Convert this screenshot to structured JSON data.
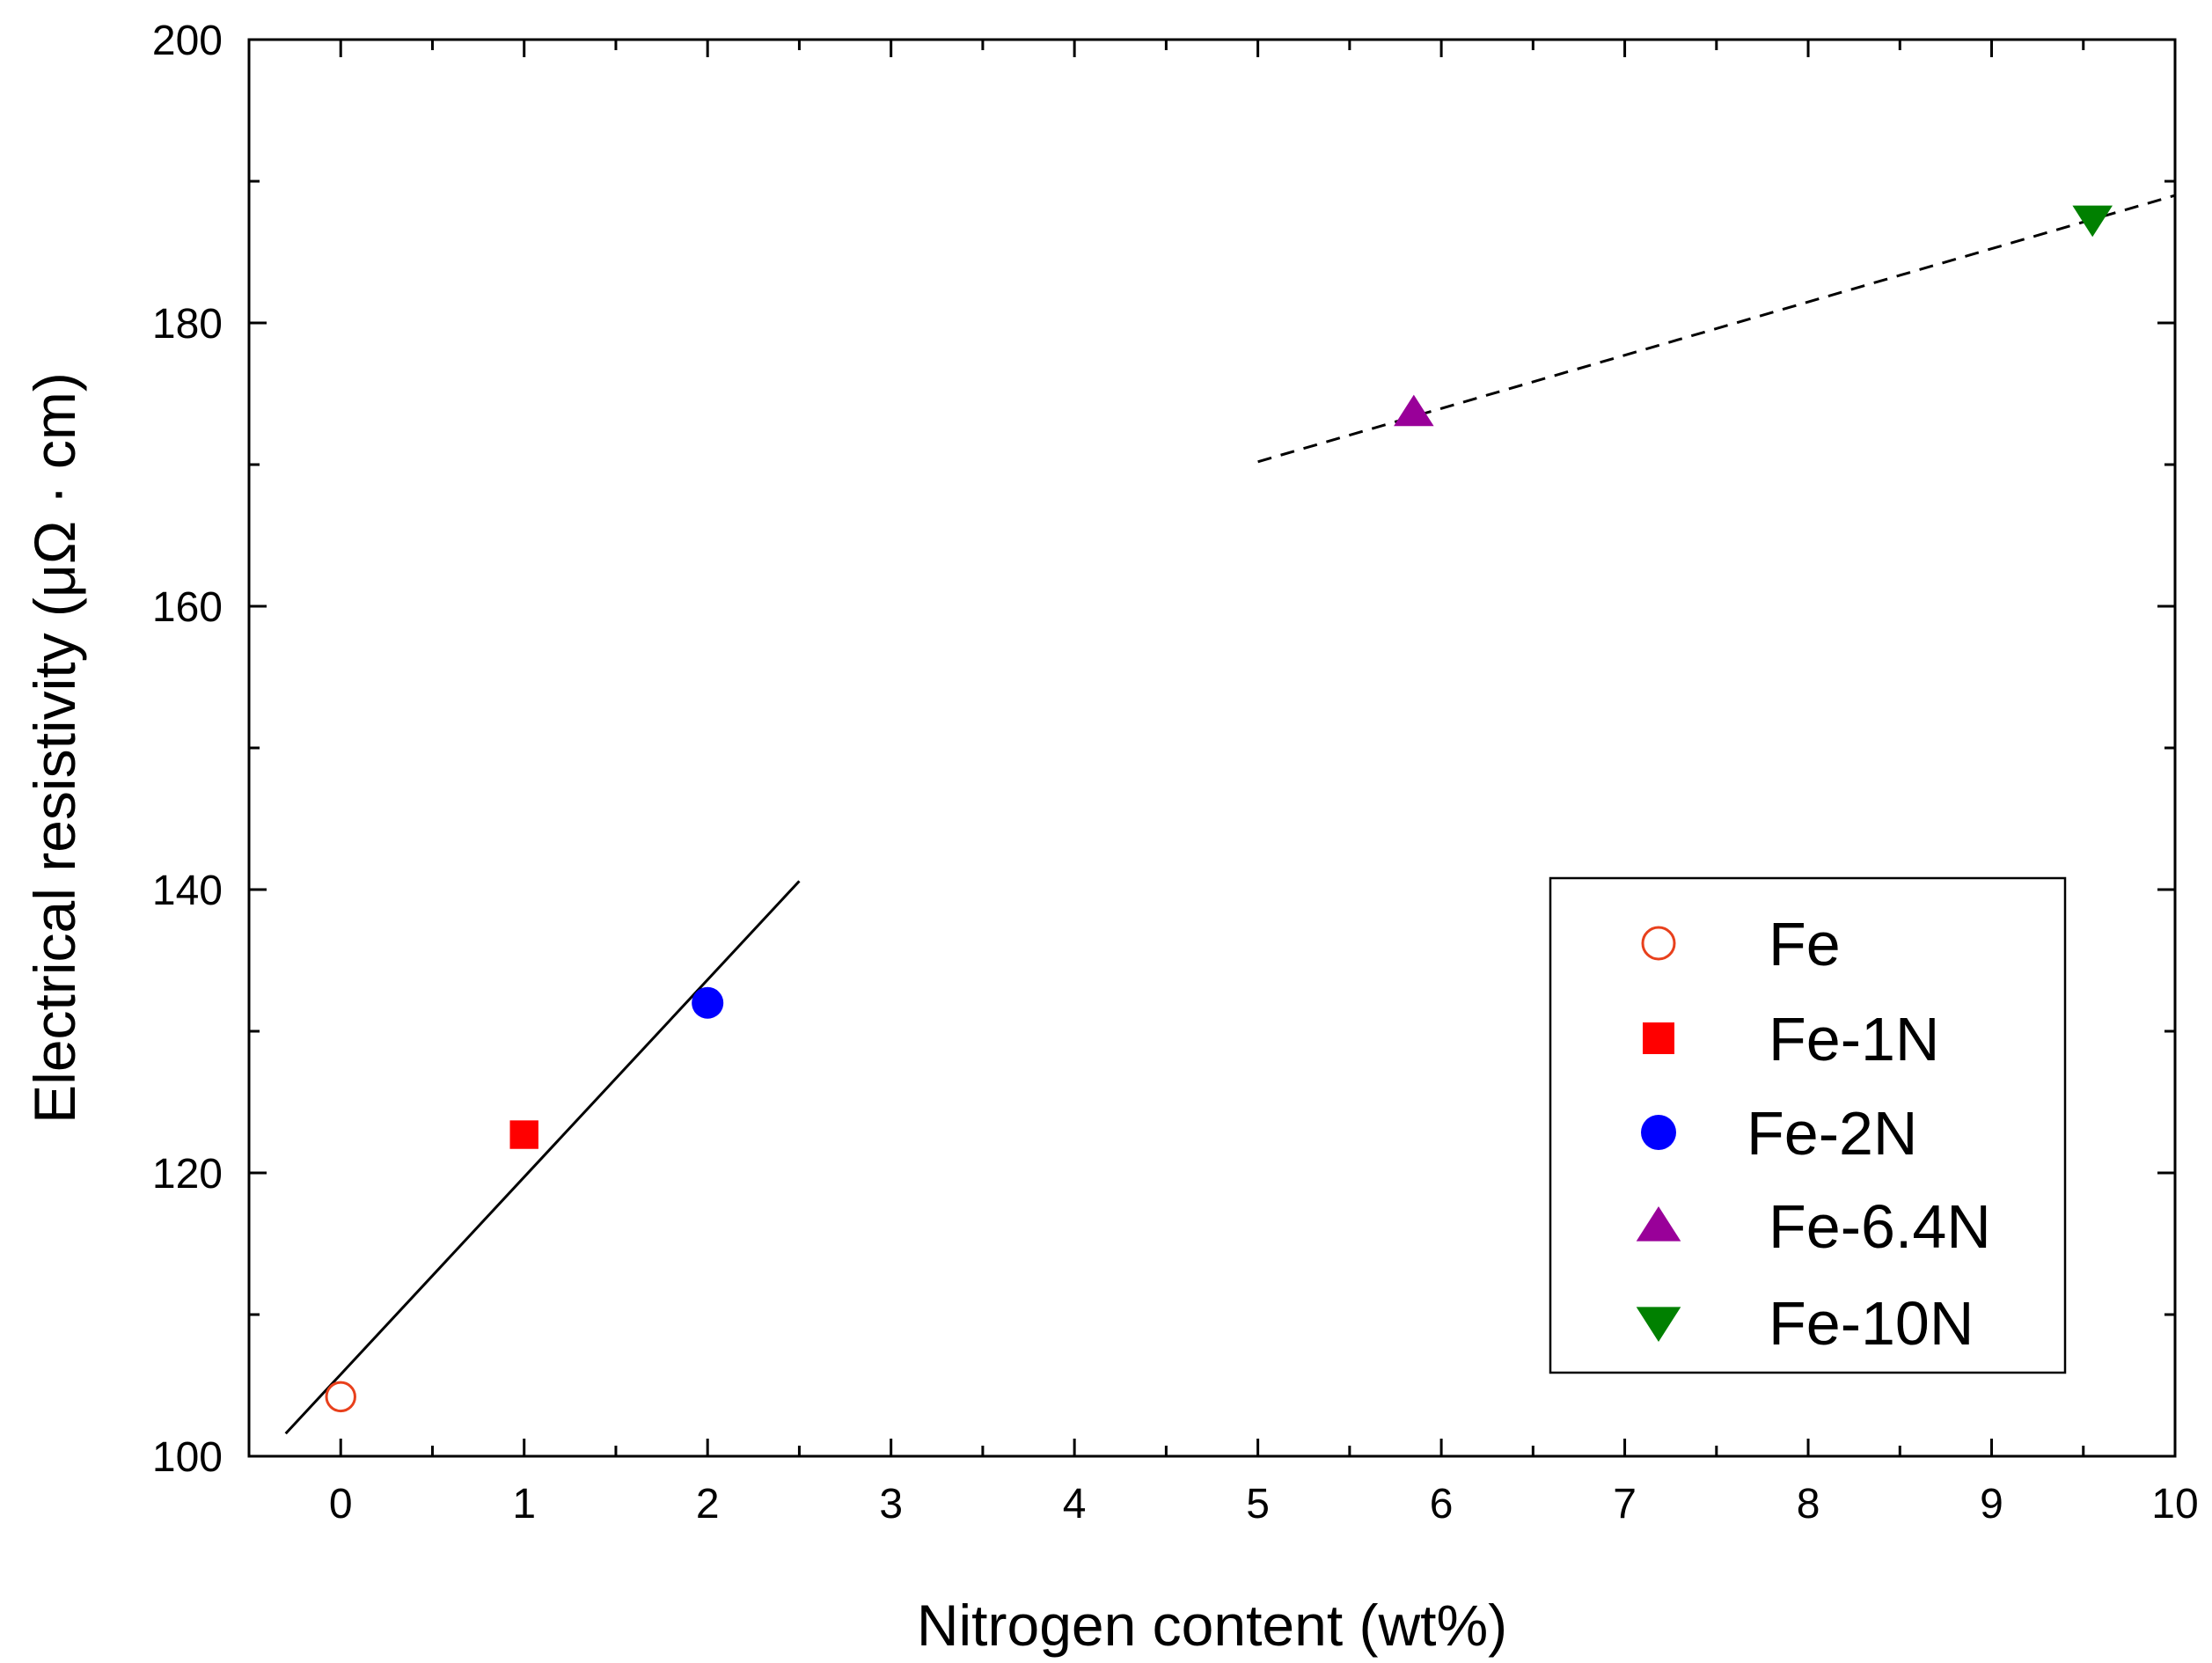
{
  "chart_data": {
    "type": "scatter",
    "title": "",
    "xlabel": "Nitrogen content (wt%)",
    "ylabel": "Electrical resistivity (μΩ · cm)",
    "xlim": [
      -0.5,
      10
    ],
    "ylim": [
      100,
      200
    ],
    "x_ticks": [
      0,
      1,
      2,
      3,
      4,
      5,
      6,
      7,
      8,
      9,
      10
    ],
    "y_ticks": [
      100,
      120,
      140,
      160,
      180,
      200
    ],
    "grid": false,
    "legend_position": "bottom-right",
    "series": [
      {
        "name": "Fe",
        "x": 0,
        "y": 104.2,
        "marker": "circle-open",
        "color": "#e8401c"
      },
      {
        "name": "Fe-1N",
        "x": 1,
        "y": 122.7,
        "marker": "square",
        "color": "#ff0000"
      },
      {
        "name": "Fe-2N",
        "x": 2,
        "y": 132.0,
        "marker": "circle",
        "color": "#0000ff"
      },
      {
        "name": "Fe-6.4N",
        "x": 5.85,
        "y": 173.7,
        "marker": "triangle-up",
        "color": "#990099"
      },
      {
        "name": "Fe-10N",
        "x": 9.55,
        "y": 187.3,
        "marker": "triangle-down",
        "color": "#008000"
      }
    ],
    "fit_lines": [
      {
        "style": "solid",
        "x": [
          -0.3,
          2.5
        ],
        "y": [
          101.6,
          140.6
        ]
      },
      {
        "style": "dashed",
        "x": [
          5.0,
          10.0
        ],
        "y": [
          170.2,
          189.0
        ]
      }
    ]
  }
}
